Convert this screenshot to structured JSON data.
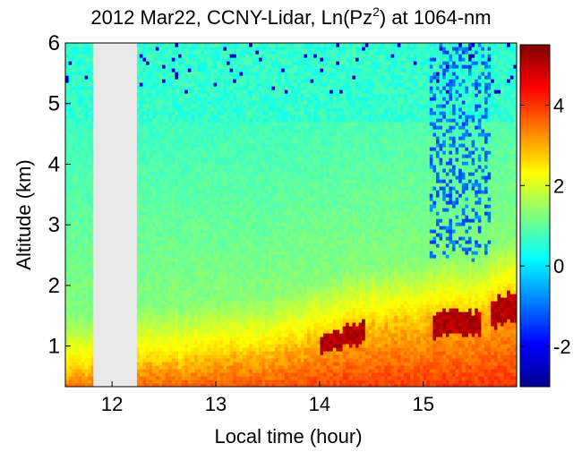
{
  "chart_data": {
    "type": "heatmap",
    "title": "2012 Mar22, CCNY-Lidar, Ln(Pz",
    "title_superscript": "2",
    "title_suffix": ") at 1064-nm",
    "xlabel": "Local time (hour)",
    "ylabel": "Altitude (km)",
    "xlim": [
      11.55,
      15.9
    ],
    "ylim": [
      0.33,
      6.0
    ],
    "xticks": [
      12,
      13,
      14,
      15
    ],
    "yticks": [
      1,
      2,
      3,
      4,
      5,
      6
    ],
    "colorbar": {
      "colormap": "jet",
      "range": [
        -3.0,
        5.5
      ],
      "ticks": [
        -2,
        0,
        2,
        4
      ],
      "tick_labels": [
        "-2",
        "0",
        "2",
        "4"
      ]
    },
    "missing_data": {
      "x_range": [
        11.82,
        12.24
      ],
      "color": "#e8e8e8"
    },
    "profile": {
      "boundary_layer_top_km": [
        [
          11.55,
          0.58
        ],
        [
          11.82,
          0.65
        ],
        [
          12.24,
          0.78
        ],
        [
          12.6,
          0.74
        ],
        [
          13.0,
          0.84
        ],
        [
          13.5,
          0.92
        ],
        [
          13.75,
          1.05
        ],
        [
          14.0,
          1.2
        ],
        [
          14.4,
          1.38
        ],
        [
          14.9,
          1.45
        ],
        [
          15.2,
          1.6
        ],
        [
          15.5,
          1.58
        ],
        [
          15.9,
          1.95
        ]
      ],
      "surface_value": 4.3,
      "free_troposphere_value": 1.3,
      "high_altitude_value": 0.6
    }
  }
}
